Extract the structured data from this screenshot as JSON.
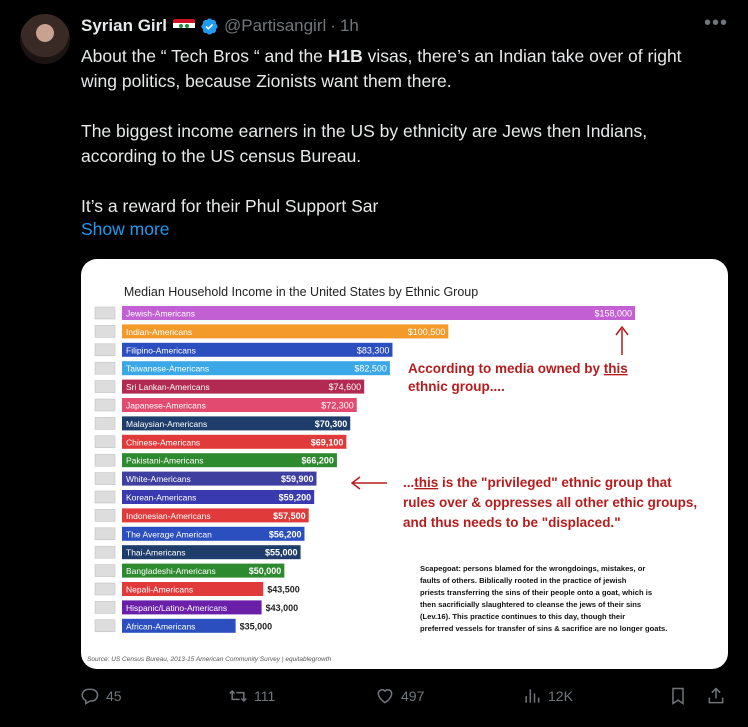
{
  "tweet": {
    "name": "Syrian Girl",
    "handle": "@Partisangirl",
    "separator": "·",
    "time": "1h",
    "more_label": "•••",
    "text_line1_pre": "About the “ Tech Bros “ and the ",
    "text_line1_bold": "H1B",
    "text_line1_post": " visas, there’s an Indian take over of right wing politics, because Zionists want them there.",
    "text_para2": "The biggest income earners in the US by ethnicity are Jews then Indians, according to the US census Bureau.",
    "text_para3": "It’s a reward for their Phul Support Sar",
    "show_more": "Show more",
    "colors": {
      "link": "#1d9bf0",
      "muted": "#71767b",
      "text": "#e7e9ea",
      "verified": "#1d9bf0"
    }
  },
  "chart_data": {
    "type": "bar",
    "orientation": "horizontal",
    "title": "Median Household Income in the United States  by Ethnic Group",
    "categories": [
      "Jewish-Americans",
      "Indian-Americans",
      "Filipino-Americans",
      "Taiwanese-Americans",
      "Sri Lankan-Americans",
      "Japanese-Americans",
      "Malaysian-Americans",
      "Chinese-Americans",
      "Pakistani-Americans",
      "White-Americans",
      "Korean-Americans",
      "Indonesian-Americans",
      "The Average American",
      "Thai-Americans",
      "Bangladeshi-Americans",
      "Nepali-Americans",
      "Hispanic/Latino-Americans",
      "African-Americans"
    ],
    "values": [
      158000,
      100500,
      83300,
      82500,
      74600,
      72300,
      70300,
      69100,
      66200,
      59900,
      59200,
      57500,
      56200,
      55000,
      50000,
      43500,
      43000,
      35000
    ],
    "value_labels": [
      "$158,000",
      "$100,500",
      "$83,300",
      "$82,500",
      "$74,600",
      "$72,300",
      "$70,300",
      "$69,100",
      "$66,200",
      "$59,900",
      "$59,200",
      "$57,500",
      "$56,200",
      "$55,000",
      "$50,000",
      "$43,500",
      "$43,000",
      "$35,000"
    ],
    "bar_colors": [
      "#c15fd3",
      "#f39a2b",
      "#2c4fbf",
      "#3aa7e6",
      "#b22a52",
      "#e24b6f",
      "#1f3d6b",
      "#e03a3a",
      "#2e8a2e",
      "#3f3f9f",
      "#3a3ab0",
      "#e03a3a",
      "#2c4fbf",
      "#1f3d6b",
      "#2e8a2e",
      "#e03a3a",
      "#6a1fa8",
      "#2c4fbf"
    ],
    "source": "Source: US Census Bureau, 2013-15 American Community Survey | equitablegrowth",
    "annotations": {
      "top_line1_pre": "According to media owned by ",
      "top_line1_u": "this",
      "top_line2": "ethnic group....",
      "mid_line1_pre": "...",
      "mid_line1_u": "this",
      "mid_line1_post": " is the \"privileged\" ethnic group that",
      "mid_line2": "rules over & oppresses all other ethic groups,",
      "mid_line3": "and thus needs to be \"displaced.\"",
      "note_lines": [
        "Scapegoat:  persons blamed for the wrongdoings, mistakes, or",
        "faults of others.  Biblically rooted in the practice of jewish",
        "priests transferring the sins of their people onto a goat, which is",
        "then sacrificially slaughtered to cleanse the jews of their sins",
        "(Lev.16).  This practice continues to this day, though their",
        "preferred vessels for transfer of sins & sacrifice are no longer goats."
      ],
      "annotation_color": "#b71c1c"
    }
  },
  "actions": {
    "reply_count": "45",
    "retweet_count": "111",
    "like_count": "497",
    "views_count": "12K"
  }
}
